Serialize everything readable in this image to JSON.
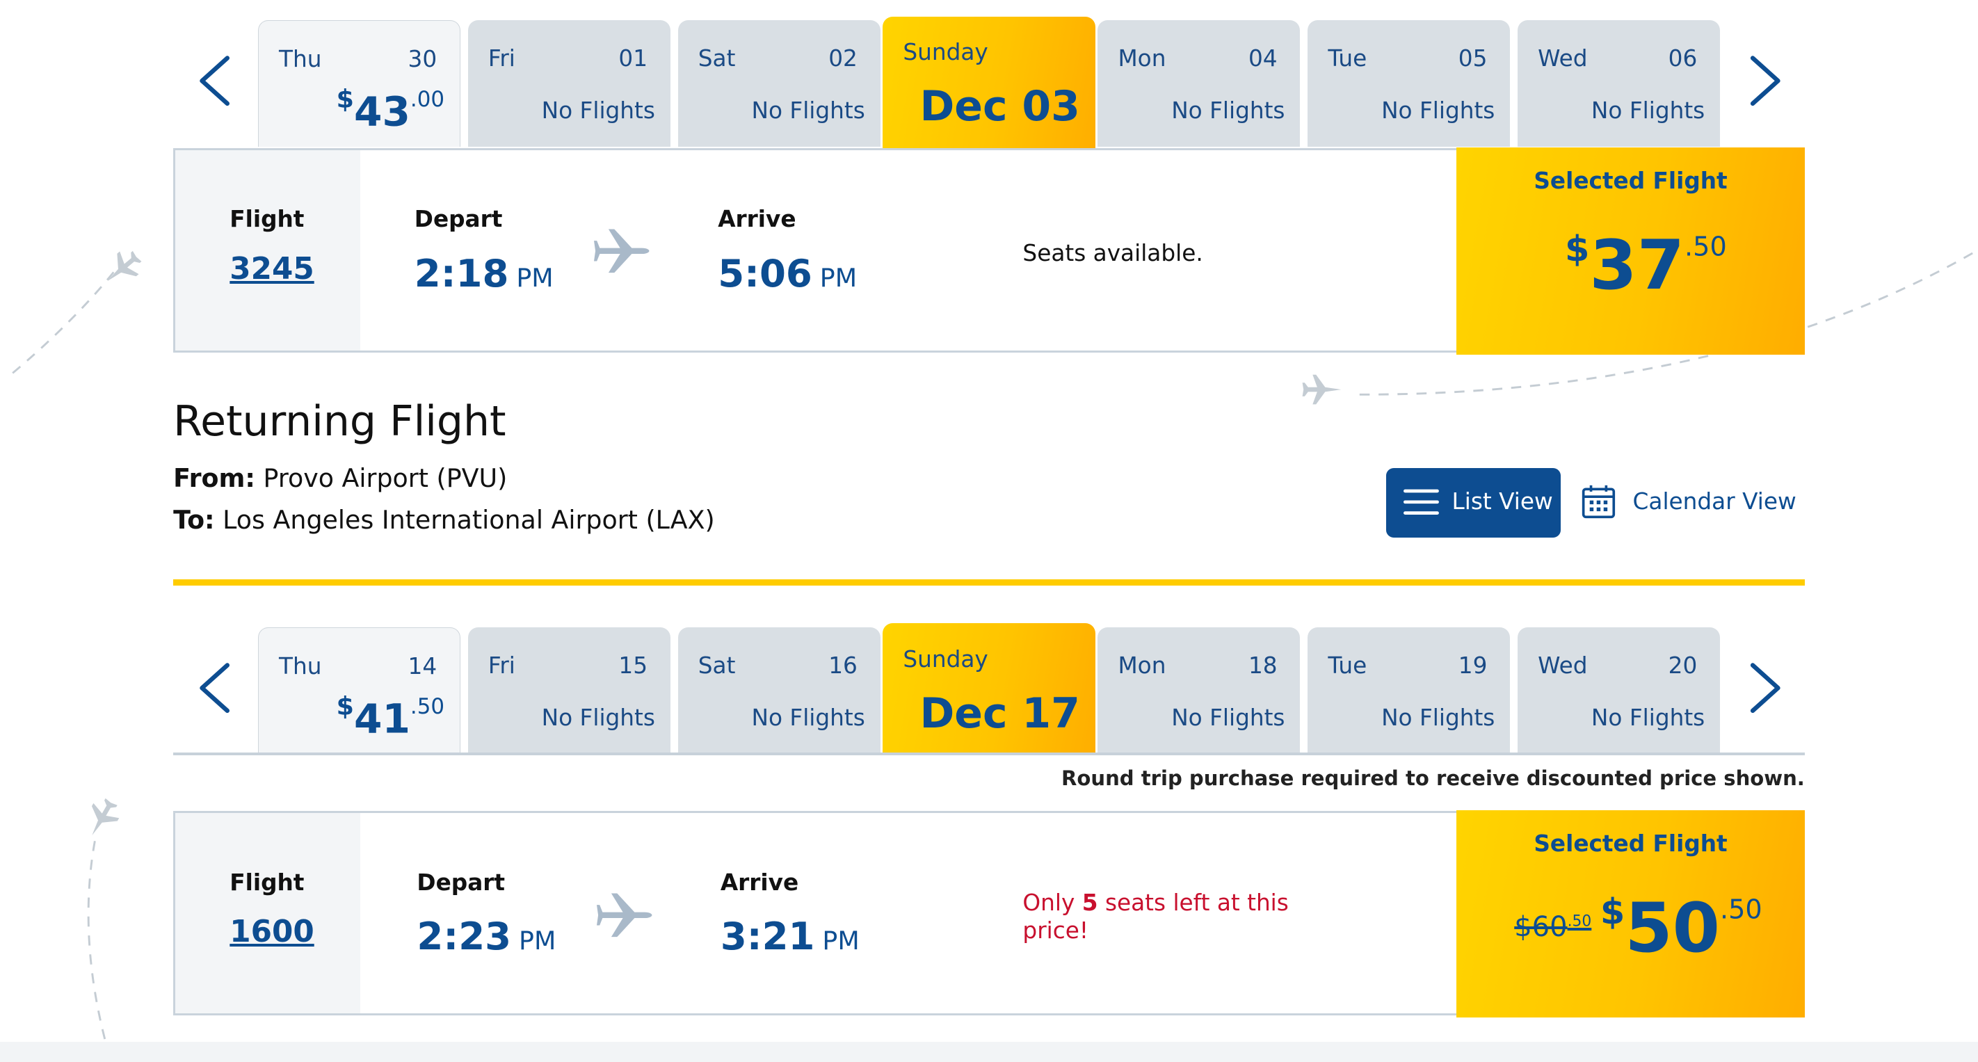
{
  "outbound": {
    "dates": [
      {
        "dow": "Thu",
        "day": "30",
        "price_cur": "$",
        "price_whole": "43",
        "price_cents": ".00"
      },
      {
        "dow": "Fri",
        "day": "01",
        "status": "No Flights"
      },
      {
        "dow": "Sat",
        "day": "02",
        "status": "No Flights"
      },
      {
        "dow": "Sunday",
        "big": "Dec 03"
      },
      {
        "dow": "Mon",
        "day": "04",
        "status": "No Flights"
      },
      {
        "dow": "Tue",
        "day": "05",
        "status": "No Flights"
      },
      {
        "dow": "Wed",
        "day": "06",
        "status": "No Flights"
      }
    ],
    "flight": {
      "flight_label": "Flight",
      "flight_number": "3245",
      "depart_label": "Depart",
      "depart_time": "2:18",
      "depart_ampm": "PM",
      "arrive_label": "Arrive",
      "arrive_time": "5:06",
      "arrive_ampm": "PM",
      "seats_text": "Seats available.",
      "selected_label": "Selected Flight",
      "price_cur": "$",
      "price_whole": "37",
      "price_cents": ".50"
    }
  },
  "return": {
    "title": "Returning Flight",
    "from_label": "From:",
    "from_value": " Provo Airport (PVU)",
    "to_label": "To:",
    "to_value": " Los Angeles International Airport (LAX)",
    "list_view": "List View",
    "calendar_view": "Calendar View",
    "dates": [
      {
        "dow": "Thu",
        "day": "14",
        "price_cur": "$",
        "price_whole": "41",
        "price_cents": ".50"
      },
      {
        "dow": "Fri",
        "day": "15",
        "status": "No Flights"
      },
      {
        "dow": "Sat",
        "day": "16",
        "status": "No Flights"
      },
      {
        "dow": "Sunday",
        "big": "Dec 17"
      },
      {
        "dow": "Mon",
        "day": "18",
        "status": "No Flights"
      },
      {
        "dow": "Tue",
        "day": "19",
        "status": "No Flights"
      },
      {
        "dow": "Wed",
        "day": "20",
        "status": "No Flights"
      }
    ],
    "notice": "Round trip purchase required to receive discounted price shown.",
    "flight": {
      "flight_label": "Flight",
      "flight_number": "1600",
      "depart_label": "Depart",
      "depart_time": "2:23",
      "depart_ampm": "PM",
      "arrive_label": "Arrive",
      "arrive_time": "3:21",
      "arrive_ampm": "PM",
      "seats_pre": "Only ",
      "seats_num": "5",
      "seats_post": " seats left at this price!",
      "selected_label": "Selected Flight",
      "old_whole": "$60",
      "old_cents": ".50",
      "price_cur": "$",
      "price_whole": "50",
      "price_cents": ".50"
    }
  },
  "colors": {
    "brand_blue": "#0d4d91",
    "accent_yellow": "#ffcc00",
    "warning_red": "#c8102e"
  },
  "icons": {
    "nav_prev": "chevron-left-icon",
    "nav_next": "chevron-right-icon",
    "plane": "airplane-icon",
    "list": "list-icon",
    "calendar": "calendar-icon"
  }
}
